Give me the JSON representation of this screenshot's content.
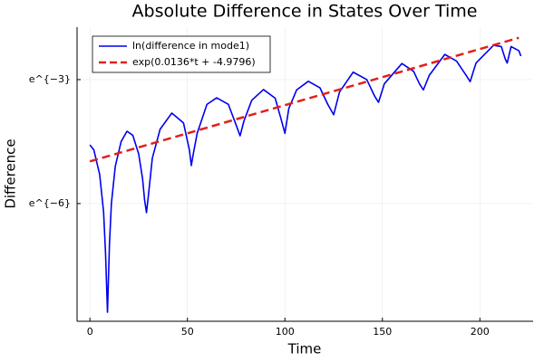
{
  "chart_data": {
    "type": "line",
    "title": "Absolute Difference in States Over Time",
    "x_label": "Time",
    "y_label": "Difference",
    "series": [
      {
        "name": "ln(difference in mode1)",
        "color": "#0000ee",
        "style": "solid",
        "x": [
          0,
          2,
          5,
          7,
          8,
          9,
          10,
          11,
          13,
          16,
          19,
          22,
          25,
          27,
          28,
          29,
          30,
          32,
          36,
          42,
          48,
          51,
          52,
          53,
          55,
          60,
          65,
          71,
          75,
          77,
          79,
          83,
          89,
          95,
          98,
          100,
          102,
          106,
          112,
          118,
          122,
          125,
          128,
          135,
          142,
          146,
          148,
          151,
          160,
          166,
          169,
          171,
          174,
          182,
          188,
          193,
          195,
          198,
          207,
          211,
          213,
          214,
          216,
          220,
          221
        ],
        "values": [
          -4.58,
          -4.7,
          -5.3,
          -6.2,
          -7.2,
          -8.63,
          -7.0,
          -6.0,
          -5.1,
          -4.5,
          -4.25,
          -4.35,
          -4.8,
          -5.4,
          -5.9,
          -6.22,
          -5.8,
          -4.9,
          -4.2,
          -3.81,
          -4.05,
          -4.7,
          -5.08,
          -4.8,
          -4.3,
          -3.6,
          -3.44,
          -3.6,
          -4.1,
          -4.36,
          -4.0,
          -3.5,
          -3.24,
          -3.45,
          -3.95,
          -4.3,
          -3.7,
          -3.25,
          -3.04,
          -3.2,
          -3.6,
          -3.85,
          -3.3,
          -2.82,
          -3.0,
          -3.4,
          -3.55,
          -3.1,
          -2.61,
          -2.8,
          -3.1,
          -3.25,
          -2.9,
          -2.39,
          -2.55,
          -2.9,
          -3.05,
          -2.6,
          -2.17,
          -2.2,
          -2.5,
          -2.6,
          -2.2,
          -2.3,
          -2.43
        ]
      },
      {
        "name": "exp(0.0136*t + -4.9796)",
        "color": "#e3201b",
        "style": "dashed",
        "x": [
          0,
          220
        ],
        "values": [
          -4.9796,
          -1.9876
        ]
      }
    ],
    "xlim": [
      -6.6,
      227.3
    ],
    "xticks": [
      0,
      50,
      100,
      150,
      200
    ],
    "ylim": [
      -8.85,
      -1.73
    ],
    "yticks": [
      {
        "value": -6,
        "label": "e^{−6}"
      },
      {
        "value": -3,
        "label": "e^{−3}"
      }
    ],
    "grid": true,
    "legend": "top-left"
  }
}
